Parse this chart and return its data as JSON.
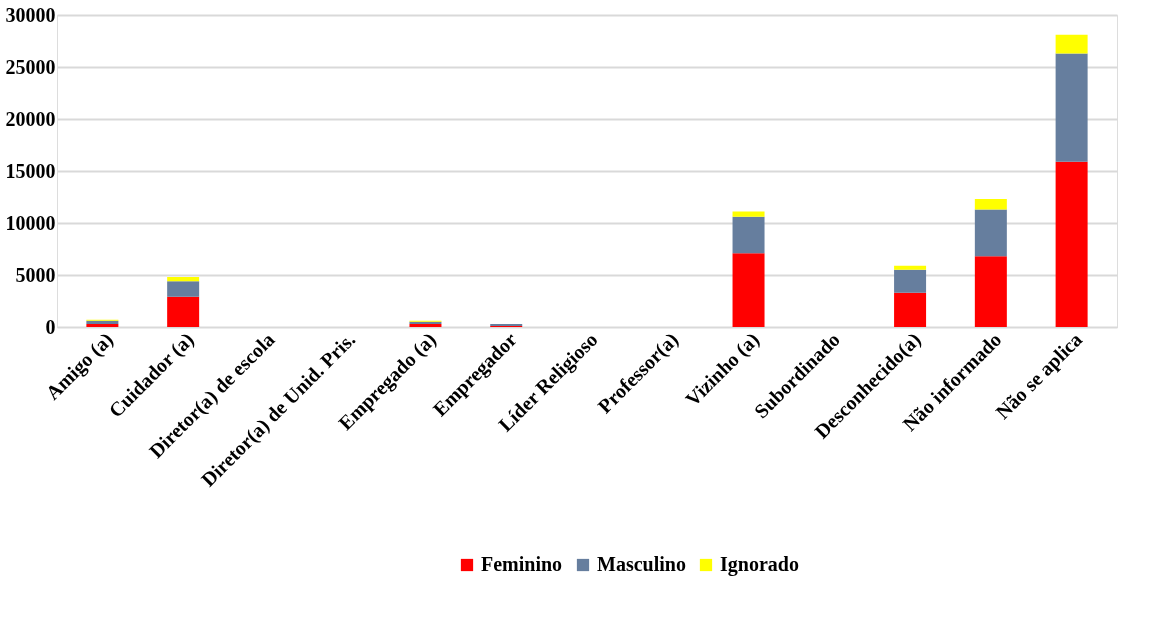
{
  "chart_data": {
    "type": "bar",
    "stacked": true,
    "categories": [
      "Amigo (a)",
      "Cuidador (a)",
      "Diretor(a) de escola",
      "Diretor(a) de Unid. Pris.",
      "Empregado (a)",
      "Empregador",
      "Líder Religioso",
      "Professor(a)",
      "Vizinho (a)",
      "Subordinado",
      "Desconhecido(a)",
      "Não informado",
      "Não se aplica"
    ],
    "series": [
      {
        "name": "Feminino",
        "color": "#ff0000",
        "values": [
          300,
          2900,
          0,
          0,
          300,
          100,
          0,
          0,
          7100,
          0,
          3300,
          6800,
          15900
        ]
      },
      {
        "name": "Masculino",
        "color": "#667e9e",
        "values": [
          300,
          1500,
          0,
          0,
          200,
          200,
          0,
          0,
          3500,
          0,
          2200,
          4500,
          10400
        ]
      },
      {
        "name": "Ignorado",
        "color": "#ffff00",
        "values": [
          100,
          400,
          0,
          0,
          100,
          0,
          0,
          0,
          500,
          0,
          400,
          1000,
          1800
        ]
      }
    ],
    "ylim": [
      0,
      30000
    ],
    "yticks": [
      0,
      5000,
      10000,
      15000,
      20000,
      25000,
      30000
    ],
    "grid": "y",
    "legend": "bottom"
  }
}
